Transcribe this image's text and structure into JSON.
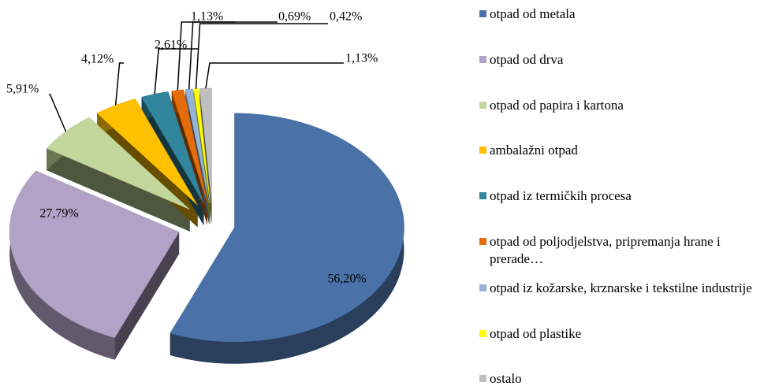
{
  "chart_data": {
    "type": "pie",
    "categories": [
      "otpad od metala",
      "otpad od drva",
      "otpad od papira i kartona",
      "ambalažni otpad",
      "otpad iz termičkih procesa",
      "otpad od poljodjelstva, pripremanja hrane i prerade…",
      "otpad iz kožarske, krznarske i tekstilne industrije",
      "otpad od plastike",
      "ostalo"
    ],
    "values": [
      56.2,
      27.79,
      5.91,
      4.12,
      2.61,
      1.13,
      0.69,
      0.42,
      1.13
    ],
    "value_labels": [
      "56,20%",
      "27,79%",
      "5,91%",
      "4,12%",
      "2,61%",
      "1,13%",
      "0,69%",
      "0,42%",
      "1,13%"
    ],
    "colors": [
      "#4a72a8",
      "#b3a2c7",
      "#c3d69b",
      "#ffc000",
      "#31859c",
      "#e46c0a",
      "#95b3d7",
      "#ffff00",
      "#bfbfbf"
    ],
    "legend": "right"
  }
}
